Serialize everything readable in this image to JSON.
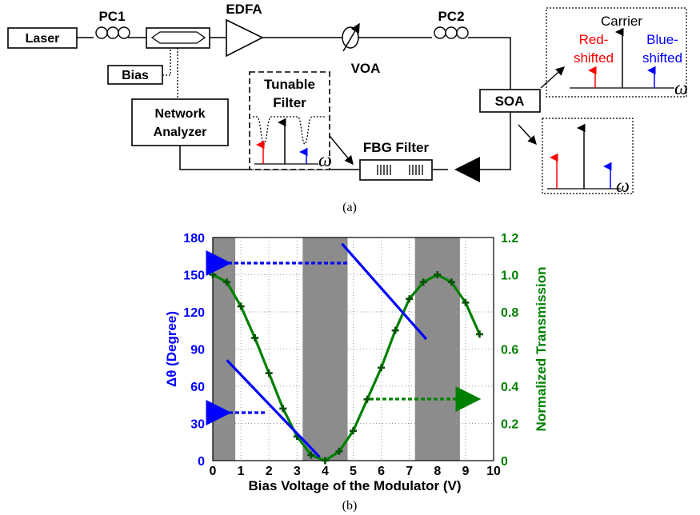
{
  "diagram": {
    "laser": "Laser",
    "pc1": "PC1",
    "edfa": "EDFA",
    "voa": "VOA",
    "pc2": "PC2",
    "bias": "Bias",
    "network_analyzer_line1": "Network",
    "network_analyzer_line2": "Analyzer",
    "tunable_filter_line1": "Tunable",
    "tunable_filter_line2": "Filter",
    "fbg_filter": "FBG Filter",
    "soa": "SOA",
    "carrier": "Carrier",
    "red_shifted_line1": "Red-",
    "red_shifted_line2": "shifted",
    "blue_shifted_line1": "Blue-",
    "blue_shifted_line2": "shifted",
    "omega": "ω",
    "caption_a": "(a)",
    "caption_b": "(b)",
    "colors": {
      "red": "#ff0000",
      "blue": "#0000ff"
    }
  },
  "chart_data": {
    "type": "line",
    "xlabel": "Bias Voltage of the Modulator (V)",
    "ylabel_left": "Δθ (Degree)",
    "ylabel_right": "Normalized Transmission",
    "xlim": [
      0,
      10
    ],
    "ylim_left": [
      0,
      180
    ],
    "ylim_right": [
      0,
      1.2
    ],
    "x_ticks": [
      "0",
      "1",
      "2",
      "3",
      "4",
      "5",
      "6",
      "7",
      "8",
      "9",
      "10"
    ],
    "y_left_ticks": [
      "0",
      "30",
      "60",
      "90",
      "120",
      "150",
      "180"
    ],
    "y_right_ticks": [
      "0",
      "0.2",
      "0.4",
      "0.6",
      "0.8",
      "1.0",
      "1.2"
    ],
    "shaded_regions": [
      [
        0,
        0.8
      ],
      [
        3.2,
        4.8
      ],
      [
        7.2,
        8.8
      ]
    ],
    "series": [
      {
        "axis": "right",
        "color": "#008000",
        "marker": "plus",
        "x": [
          0,
          0.5,
          1,
          1.5,
          2,
          2.5,
          3,
          3.5,
          4,
          4.5,
          5,
          5.5,
          6,
          6.5,
          7,
          7.5,
          8,
          8.5,
          9,
          9.5
        ],
        "y": [
          1.0,
          0.96,
          0.83,
          0.66,
          0.47,
          0.28,
          0.13,
          0.03,
          0.0,
          0.05,
          0.16,
          0.33,
          0.5,
          0.7,
          0.87,
          0.96,
          1.0,
          0.96,
          0.85,
          0.68
        ]
      },
      {
        "axis": "left",
        "color": "#0000ff",
        "x": [
          0.5,
          3.8
        ],
        "y": [
          81,
          3
        ]
      },
      {
        "axis": "left",
        "color": "#0000ff",
        "x": [
          4.6,
          7.6
        ],
        "y": [
          175,
          98
        ]
      }
    ],
    "axis_colors": {
      "left": "#0000ff",
      "right": "#008000"
    }
  }
}
